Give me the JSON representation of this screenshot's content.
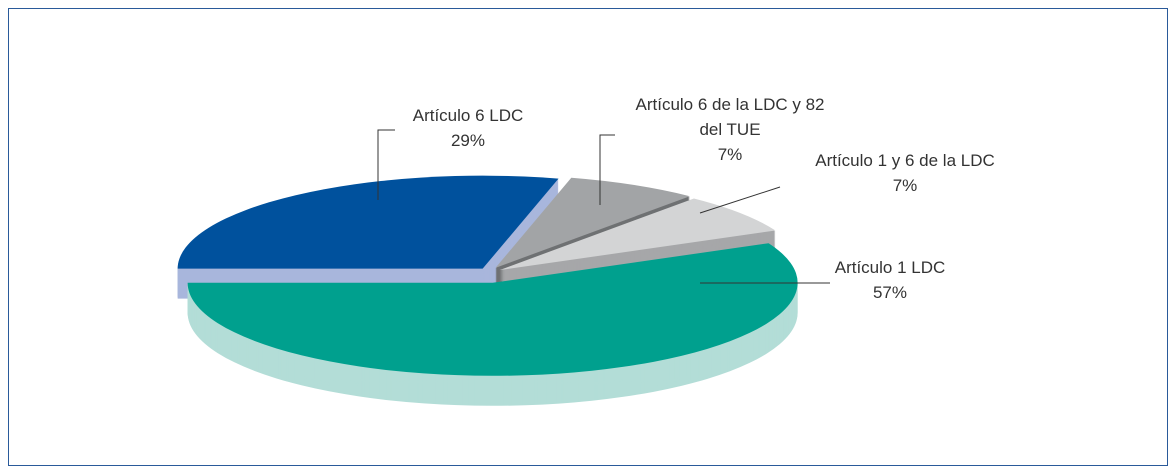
{
  "chart_data": {
    "type": "pie",
    "categories": [
      "Artículo 1 LDC",
      "Artículo 1 y 6 de la LDC",
      "Artículo 6 de la LDC y 82 del TUE",
      "Artículo 6 LDC"
    ],
    "values": [
      57,
      7,
      7,
      29
    ],
    "value_labels": [
      "57%",
      "7%",
      "7%",
      "29%"
    ],
    "colors": [
      "#00a08e",
      "#d3d4d5",
      "#a2a4a6",
      "#00519d"
    ]
  }
}
